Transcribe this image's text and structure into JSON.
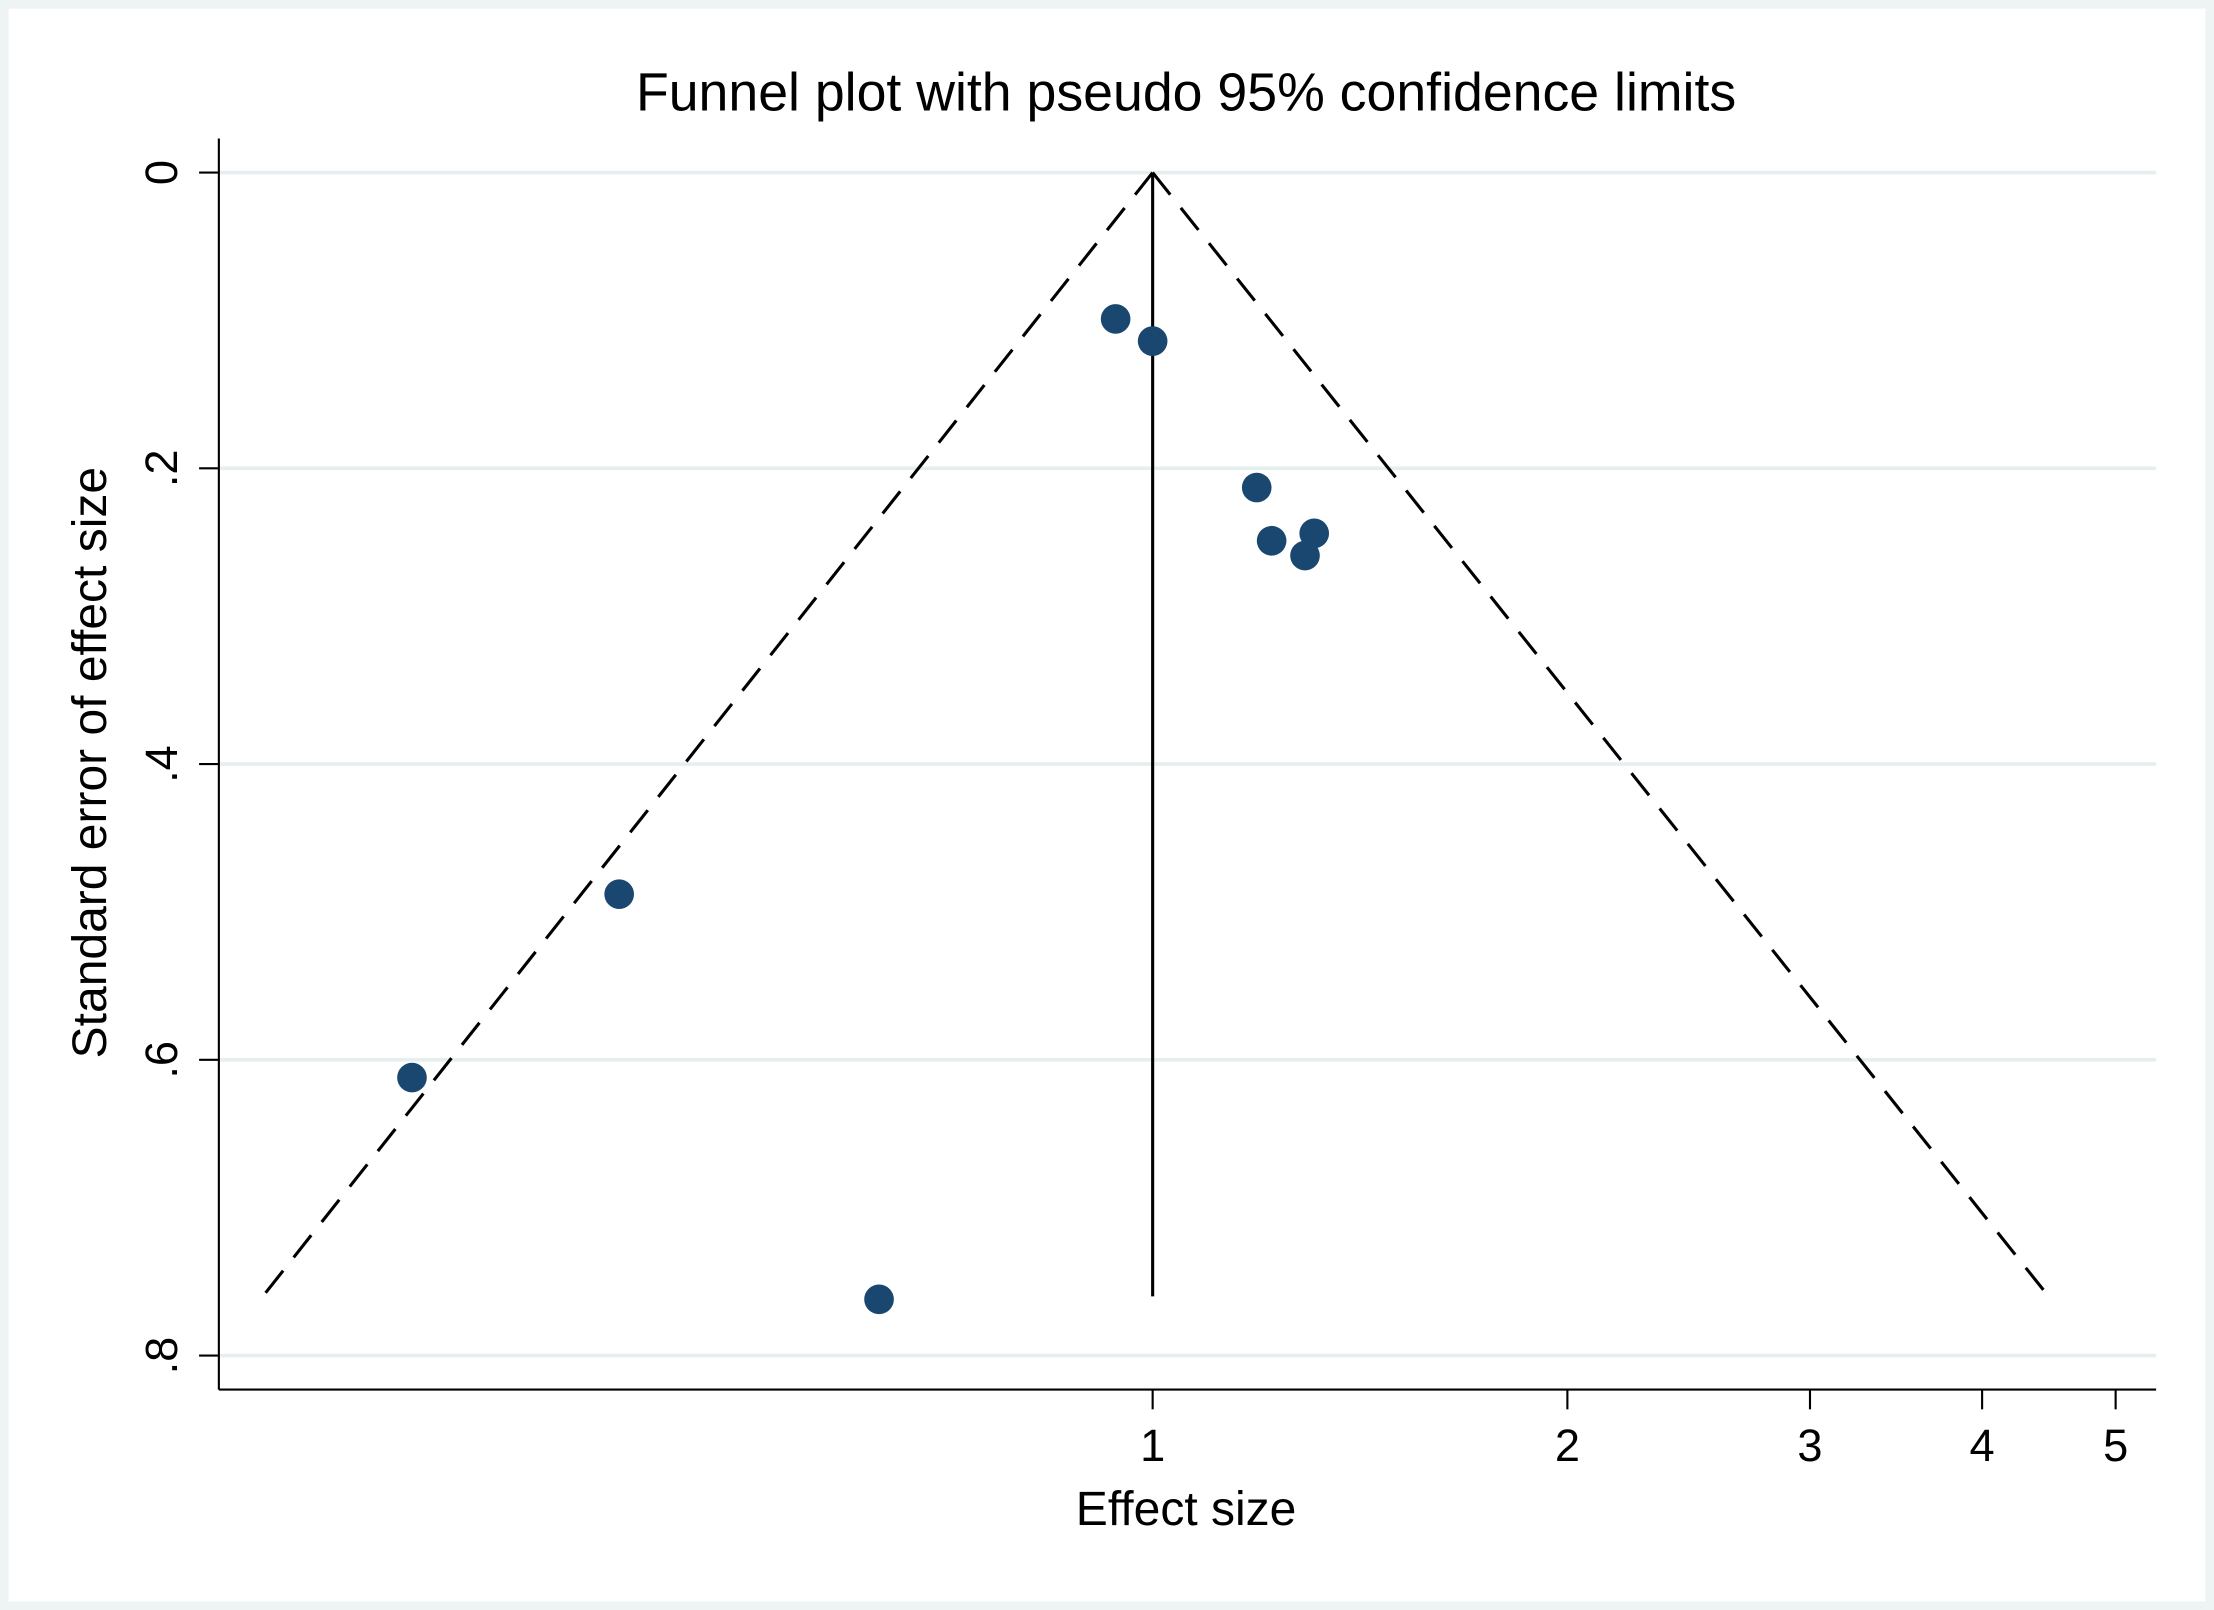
{
  "chart_data": {
    "type": "scatter",
    "title": "Funnel plot with pseudo 95% confidence limits",
    "x_label": "Effect size",
    "y_label": "Standard error of effect size",
    "x_log": true,
    "y_reversed": true,
    "grid": true,
    "color": "#1a476f",
    "xlim": [
      0.21,
      5.35
    ],
    "xticks": [
      1,
      2,
      3,
      4,
      5
    ],
    "ylim": [
      -0.023,
      0.823
    ],
    "yticks": [
      0,
      {
        "value": 0.2,
        "label": ".2"
      },
      {
        "value": 0.4,
        "label": ".4"
      },
      {
        "value": 0.6,
        "label": ".6"
      },
      {
        "value": 0.8,
        "label": ".8"
      }
    ],
    "x": [
      0.94,
      1.0,
      1.19,
      1.22,
      1.31,
      1.29,
      0.41,
      0.29,
      0.633
    ],
    "values": [
      0.099,
      0.114,
      0.213,
      0.249,
      0.244,
      0.259,
      0.488,
      0.612,
      0.762
    ],
    "pooled_effect": 1,
    "funnel": {
      "se": [
        0,
        0.76
      ],
      "x_lower": [
        1,
        0.226
      ],
      "x_upper": [
        1,
        4.47
      ]
    }
  }
}
